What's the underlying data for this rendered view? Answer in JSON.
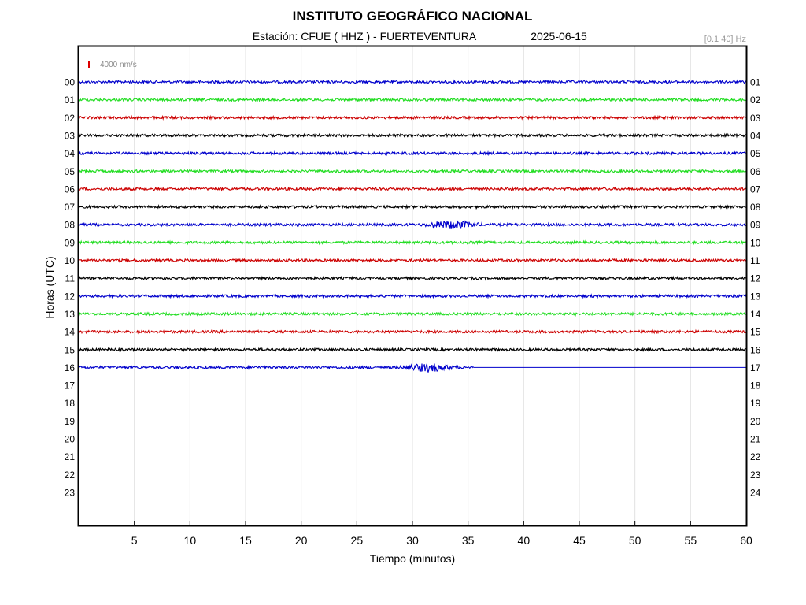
{
  "chart_data": {
    "type": "line",
    "title": "INSTITUTO GEOGRÁFICO NACIONAL",
    "subtitle_station": "Estación:  CFUE ( HHZ ) - FUERTEVENTURA",
    "subtitle_date": "2025-06-15",
    "filter_label": "[0.1 40] Hz",
    "scale_label": "4000 nm/s",
    "xlabel": "Tiempo (minutos)",
    "ylabel": "Horas (UTC)",
    "xlim": [
      0,
      60
    ],
    "x_ticks": [
      "5",
      "10",
      "15",
      "20",
      "25",
      "30",
      "35",
      "40",
      "45",
      "50",
      "55",
      "60"
    ],
    "left_hour_labels": [
      "00",
      "01",
      "02",
      "03",
      "04",
      "05",
      "06",
      "07",
      "08",
      "09",
      "10",
      "11",
      "12",
      "13",
      "14",
      "15",
      "16",
      "17",
      "18",
      "19",
      "20",
      "21",
      "22",
      "23"
    ],
    "right_hour_labels": [
      "01",
      "02",
      "03",
      "04",
      "05",
      "06",
      "07",
      "08",
      "09",
      "10",
      "11",
      "12",
      "13",
      "14",
      "15",
      "16",
      "17",
      "18",
      "19",
      "20",
      "21",
      "22",
      "23",
      "24"
    ],
    "grid": true,
    "colors": {
      "blue": "#0000cc",
      "green": "#22dd22",
      "red": "#cc0000",
      "black": "#000000",
      "scale_bar": "#dd0000"
    },
    "traces": [
      {
        "hour": 0,
        "color": "blue",
        "minutes_recorded": 60
      },
      {
        "hour": 1,
        "color": "green",
        "minutes_recorded": 60
      },
      {
        "hour": 2,
        "color": "red",
        "minutes_recorded": 60
      },
      {
        "hour": 3,
        "color": "black",
        "minutes_recorded": 60
      },
      {
        "hour": 4,
        "color": "blue",
        "minutes_recorded": 60
      },
      {
        "hour": 5,
        "color": "green",
        "minutes_recorded": 60
      },
      {
        "hour": 6,
        "color": "red",
        "minutes_recorded": 60
      },
      {
        "hour": 7,
        "color": "black",
        "minutes_recorded": 60
      },
      {
        "hour": 8,
        "color": "blue",
        "minutes_recorded": 60,
        "event_minute": 33.5
      },
      {
        "hour": 9,
        "color": "green",
        "minutes_recorded": 60
      },
      {
        "hour": 10,
        "color": "red",
        "minutes_recorded": 60
      },
      {
        "hour": 11,
        "color": "black",
        "minutes_recorded": 60
      },
      {
        "hour": 12,
        "color": "blue",
        "minutes_recorded": 60
      },
      {
        "hour": 13,
        "color": "green",
        "minutes_recorded": 60
      },
      {
        "hour": 14,
        "color": "red",
        "minutes_recorded": 60
      },
      {
        "hour": 15,
        "color": "black",
        "minutes_recorded": 60
      },
      {
        "hour": 16,
        "color": "blue",
        "minutes_recorded": 35.5,
        "event_minute": 31.5
      }
    ]
  }
}
